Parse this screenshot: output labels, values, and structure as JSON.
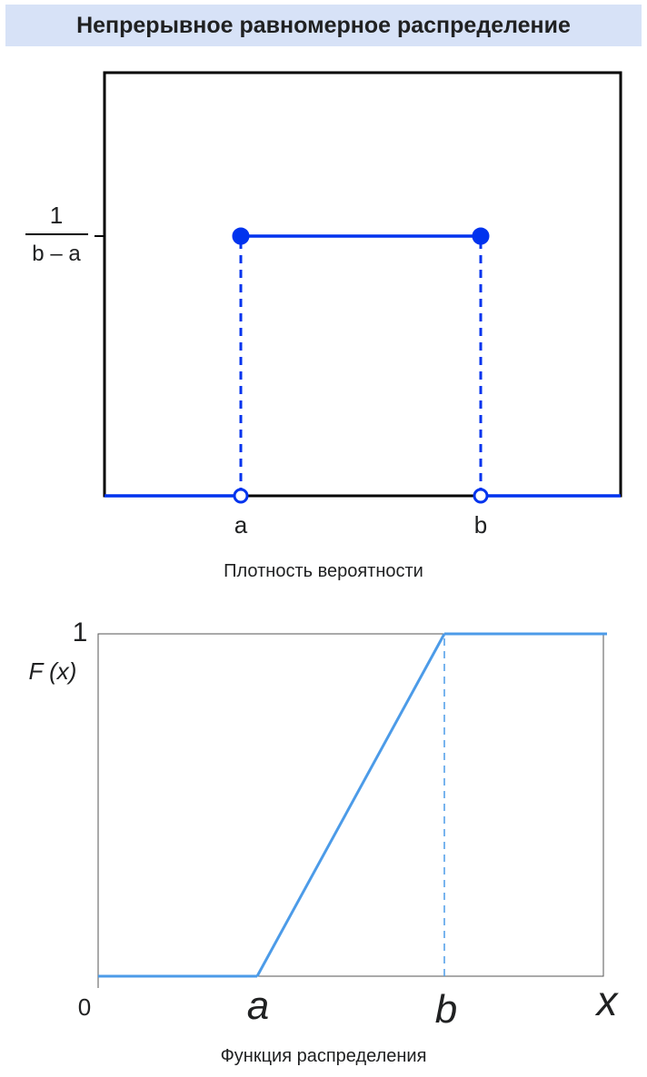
{
  "infobox": {
    "title": "Непрерывное равномерное распределение",
    "pdf_caption": "Плотность вероятности",
    "cdf_caption": "Функция распределения"
  },
  "chart_data": [
    {
      "type": "line",
      "id": "pdf",
      "x_tick_labels": [
        "a",
        "b"
      ],
      "y_tick_label": {
        "numerator": "1",
        "denominator": "b – a"
      },
      "segments": [
        {
          "x": [
            -1,
            0
          ],
          "y": [
            0,
            0
          ],
          "style": "solid"
        },
        {
          "x": [
            0,
            1
          ],
          "y": [
            1,
            1
          ],
          "style": "solid"
        },
        {
          "x": [
            1,
            2
          ],
          "y": [
            0,
            0
          ],
          "style": "solid"
        },
        {
          "x": [
            0,
            0
          ],
          "y": [
            0,
            1
          ],
          "style": "dashed"
        },
        {
          "x": [
            1,
            1
          ],
          "y": [
            0,
            1
          ],
          "style": "dashed"
        }
      ],
      "points": [
        {
          "x": 0,
          "y": 1,
          "filled": true
        },
        {
          "x": 1,
          "y": 1,
          "filled": true
        },
        {
          "x": 0,
          "y": 0,
          "filled": false
        },
        {
          "x": 1,
          "y": 0,
          "filled": false
        }
      ],
      "color": "#0033ee",
      "frame_color": "#000000"
    },
    {
      "type": "line",
      "id": "cdf",
      "ylabel": "F (x)",
      "y_tick_label": "1",
      "origin_label": "0",
      "x_tick_labels": [
        "a",
        "b"
      ],
      "x_axis_label": "x",
      "series": [
        {
          "x": [
            -0.9,
            0,
            1,
            1.9
          ],
          "y": [
            0,
            0,
            1,
            1
          ]
        }
      ],
      "dashed_guide": {
        "x": 1,
        "y": [
          0,
          1
        ]
      },
      "color": "#4c9be8",
      "frame_color": "#555555"
    }
  ]
}
